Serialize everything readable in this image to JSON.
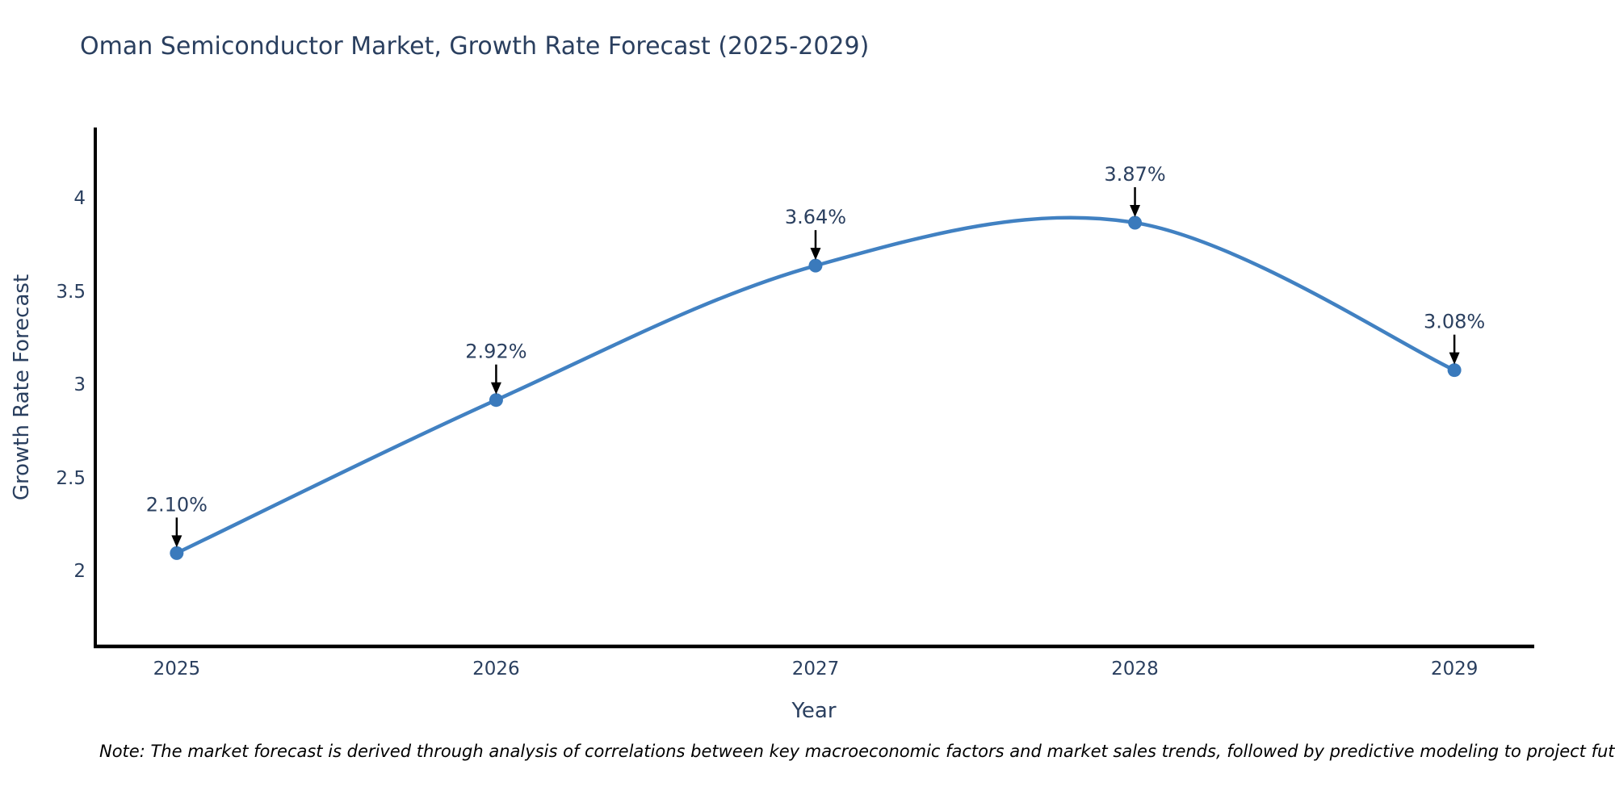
{
  "title": "Oman Semiconductor Market, Growth Rate Forecast (2025-2029)",
  "note": "Note: The market forecast is derived through analysis of correlations between key macroeconomic factors and market sales trends, followed by predictive modeling to project future sales",
  "colors": {
    "title_text": "#2a3f5f",
    "tick_text": "#2a3f5f",
    "annotation_text": "#2a3f5f",
    "line": "#4181c2",
    "marker": "#3a7abc",
    "axis": "#000000",
    "arrow": "#000000",
    "note_text": "#000000",
    "background": "#ffffff"
  },
  "chart_data": {
    "type": "line",
    "line_shape": "spline",
    "title": "Oman Semiconductor Market, Growth Rate Forecast (2025-2029)",
    "xlabel": "Year",
    "ylabel": "Growth Rate Forecast",
    "x": [
      2025,
      2026,
      2027,
      2028,
      2029
    ],
    "series": [
      {
        "name": "Growth Rate Forecast",
        "values": [
          2.1,
          2.92,
          3.64,
          3.87,
          3.08
        ]
      }
    ],
    "point_labels": [
      "2.10%",
      "2.92%",
      "3.64%",
      "3.87%",
      "3.08%"
    ],
    "xticks": [
      2025,
      2026,
      2027,
      2028,
      2029
    ],
    "yticks": [
      2,
      2.5,
      3,
      3.5,
      4
    ],
    "xlim": [
      2024.74,
      2029.25
    ],
    "ylim": [
      1.6,
      4.38
    ],
    "grid": false,
    "legend": "none",
    "markers": true,
    "annotations": true
  }
}
